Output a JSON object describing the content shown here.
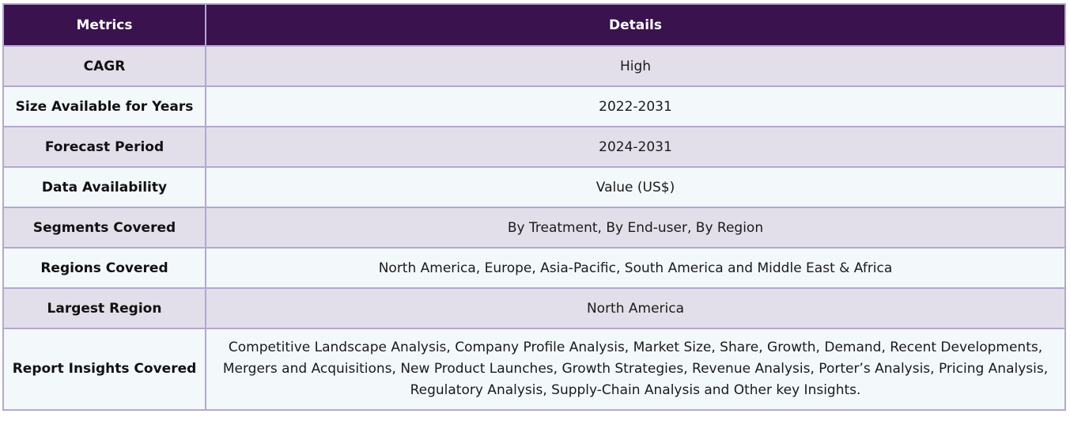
{
  "header": {
    "col1": "Metrics",
    "col2": "Details"
  },
  "rows": [
    {
      "metric": "CAGR",
      "detail": "High"
    },
    {
      "metric": "Size Available for Years",
      "detail": "2022-2031"
    },
    {
      "metric": "Forecast Period",
      "detail": "2024-2031"
    },
    {
      "metric": "Data Availability",
      "detail": "Value (US$)"
    },
    {
      "metric": "Segments Covered",
      "detail": "By Treatment, By End-user, By Region"
    },
    {
      "metric": "Regions Covered",
      "detail": "North America, Europe, Asia-Pacific, South America and Middle East & Africa"
    },
    {
      "metric": "Largest Region",
      "detail": "North America"
    },
    {
      "metric": "Report Insights Covered",
      "detail": "Competitive Landscape Analysis, Company Profile Analysis, Market Size, Share, Growth, Demand, Recent Developments, Mergers and Acquisitions, New Product Launches, Growth Strategies, Revenue Analysis, Porter’s Analysis, Pricing Analysis, Regulatory Analysis, Supply-Chain Analysis and Other key Insights."
    }
  ],
  "colors": {
    "header_bg": "#3a124e",
    "row_odd_bg": "#e2dfea",
    "row_even_bg": "#f3f8fb",
    "border": "#b3a8cf"
  }
}
